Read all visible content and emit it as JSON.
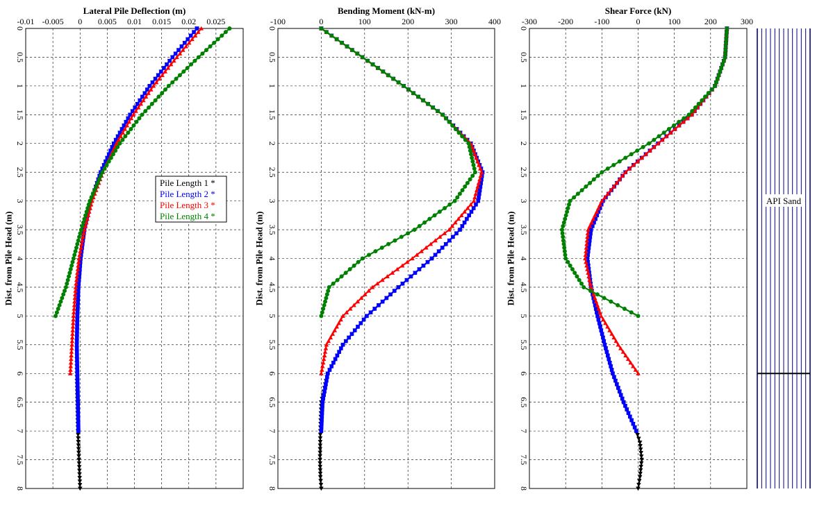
{
  "chart_data": [
    {
      "type": "line",
      "title": "Lateral Pile Deflection (m)",
      "xlabel": "Lateral Pile Deflection (m)",
      "ylabel": "Dist. from Pile Head (m)",
      "xlim": [
        -0.01,
        0.03
      ],
      "ylim": [
        0,
        8
      ],
      "xticks": [
        -0.01,
        -0.005,
        0,
        0.005,
        0.01,
        0.015,
        0.02,
        0.025
      ],
      "xtick_labels": [
        "-0.01",
        "-0.005",
        "0",
        "0.005",
        "0.01",
        "0.015",
        "0.02",
        "0.025"
      ],
      "yticks": [
        0,
        0.5,
        1,
        1.5,
        2,
        2.5,
        3,
        3.5,
        4,
        4.5,
        5,
        5.5,
        6,
        6.5,
        7,
        7.5,
        8
      ],
      "ytick_labels": [
        "0",
        "0.5",
        "1",
        "1.5",
        "2",
        "2.5",
        "3",
        "3.5",
        "4",
        "4.5",
        "5",
        "5.5",
        "6",
        "6.5",
        "7",
        "7.5",
        "8"
      ],
      "grid": true,
      "series": [
        {
          "name": "Pile Length 1",
          "color": "#000000",
          "marker": "triangle-down",
          "x": [
            0.0215,
            0.017,
            0.0128,
            0.0092,
            0.0062,
            0.0038,
            0.002,
            0.0008,
            0.0001,
            -0.0003,
            -0.0005,
            -0.0006,
            -0.0006,
            -0.0005,
            -0.0004,
            -0.0002,
            0
          ],
          "y": [
            0,
            0.5,
            1,
            1.5,
            2,
            2.5,
            3,
            3.5,
            4,
            4.5,
            5,
            5.5,
            6,
            6.5,
            7,
            7.5,
            8
          ]
        },
        {
          "name": "Pile Length 2",
          "color": "#0000ff",
          "marker": "square",
          "x": [
            0.0215,
            0.017,
            0.0128,
            0.0092,
            0.0062,
            0.0038,
            0.002,
            0.0008,
            0.0001,
            -0.0003,
            -0.0005,
            -0.0006,
            -0.0005,
            -0.0004,
            -0.0003
          ],
          "y": [
            0,
            0.5,
            1,
            1.5,
            2,
            2.5,
            3,
            3.5,
            4,
            4.5,
            5,
            5.5,
            6,
            6.5,
            7
          ]
        },
        {
          "name": "Pile Length 3",
          "color": "#ff0000",
          "marker": "triangle-up",
          "x": [
            0.0223,
            0.0178,
            0.0135,
            0.0098,
            0.0067,
            0.0042,
            0.0022,
            0.0008,
            -0.0002,
            -0.0008,
            -0.0012,
            -0.0015,
            -0.0018
          ],
          "y": [
            0,
            0.5,
            1,
            1.5,
            2,
            2.5,
            3,
            3.5,
            4,
            4.5,
            5,
            5.5,
            6
          ]
        },
        {
          "name": "Pile Length 4",
          "color": "#008000",
          "marker": "circle",
          "x": [
            0.0275,
            0.0218,
            0.0163,
            0.0114,
            0.0073,
            0.0041,
            0.0018,
            0.0002,
            -0.0012,
            -0.0026,
            -0.0045
          ],
          "y": [
            0,
            0.5,
            1,
            1.5,
            2,
            2.5,
            3,
            3.5,
            4,
            4.5,
            5
          ]
        }
      ],
      "legend": {
        "placement": "center-right",
        "suffix": "*"
      }
    },
    {
      "type": "line",
      "title": "Bending Moment (kN-m)",
      "xlabel": "Bending Moment (kN-m)",
      "ylabel": "Dist. from Pile Head (m)",
      "xlim": [
        -100,
        400
      ],
      "ylim": [
        0,
        8
      ],
      "xticks": [
        -100,
        0,
        100,
        200,
        300,
        400
      ],
      "xtick_labels": [
        "-100",
        "0",
        "100",
        "200",
        "300",
        "400"
      ],
      "yticks": [
        0,
        0.5,
        1,
        1.5,
        2,
        2.5,
        3,
        3.5,
        4,
        4.5,
        5,
        5.5,
        6,
        6.5,
        7,
        7.5,
        8
      ],
      "ytick_labels": [
        "0",
        "0.5",
        "1",
        "1.5",
        "2",
        "2.5",
        "3",
        "3.5",
        "4",
        "4.5",
        "5",
        "5.5",
        "6",
        "6.5",
        "7",
        "7.5",
        "8"
      ],
      "grid": true,
      "series": [
        {
          "name": "Pile Length 1",
          "color": "#000000",
          "marker": "triangle-down",
          "x": [
            0,
            95,
            190,
            280,
            345,
            372,
            362,
            320,
            255,
            178,
            105,
            50,
            15,
            0,
            -2,
            -3,
            -2,
            0
          ],
          "y": [
            0,
            0.5,
            1,
            1.5,
            2,
            2.5,
            3,
            3.5,
            4,
            4.5,
            5,
            5.5,
            6,
            6.5,
            7,
            7.5,
            7.8,
            8
          ]
        },
        {
          "name": "Pile Length 2",
          "color": "#0000ff",
          "marker": "square",
          "x": [
            0,
            95,
            190,
            280,
            345,
            372,
            362,
            320,
            255,
            178,
            105,
            50,
            15,
            3,
            0
          ],
          "y": [
            0,
            0.5,
            1,
            1.5,
            2,
            2.5,
            3,
            3.5,
            4,
            4.5,
            5,
            5.5,
            6,
            6.5,
            7
          ]
        },
        {
          "name": "Pile Length 3",
          "color": "#ff0000",
          "marker": "triangle-up",
          "x": [
            0,
            95,
            190,
            280,
            345,
            370,
            352,
            295,
            210,
            118,
            50,
            12,
            0
          ],
          "y": [
            0,
            0.5,
            1,
            1.5,
            2,
            2.5,
            3,
            3.5,
            4,
            4.5,
            5,
            5.5,
            6
          ]
        },
        {
          "name": "Pile Length 4",
          "color": "#008000",
          "marker": "circle",
          "x": [
            0,
            95,
            190,
            280,
            340,
            355,
            308,
            215,
            95,
            18,
            0
          ],
          "y": [
            0,
            0.5,
            1,
            1.5,
            2,
            2.5,
            3,
            3.5,
            4,
            4.5,
            5
          ]
        }
      ]
    },
    {
      "type": "line",
      "title": "Shear Force (kN)",
      "xlabel": "Shear Force (kN)",
      "ylabel": "Dist. from Pile Head (m)",
      "xlim": [
        -300,
        300
      ],
      "ylim": [
        0,
        8
      ],
      "xticks": [
        -300,
        -200,
        -100,
        0,
        100,
        200,
        300
      ],
      "xtick_labels": [
        "-300",
        "-200",
        "-100",
        "0",
        "100",
        "200",
        "300"
      ],
      "yticks": [
        0,
        0.5,
        1,
        1.5,
        2,
        2.5,
        3,
        3.5,
        4,
        4.5,
        5,
        5.5,
        6,
        6.5,
        7,
        7.5,
        8
      ],
      "ytick_labels": [
        "0",
        "0.5",
        "1",
        "1.5",
        "2",
        "2.5",
        "3",
        "3.5",
        "4",
        "4.5",
        "5",
        "5.5",
        "6",
        "6.5",
        "7",
        "7.5",
        "8"
      ],
      "grid": true,
      "series": [
        {
          "name": "Pile Length 1",
          "color": "#000000",
          "marker": "triangle-down",
          "x": [
            245,
            240,
            212,
            148,
            55,
            -35,
            -97,
            -130,
            -140,
            -130,
            -112,
            -92,
            -70,
            -40,
            -5,
            5,
            10,
            5,
            0
          ],
          "y": [
            0,
            0.5,
            1,
            1.5,
            2,
            2.5,
            3,
            3.5,
            4,
            4.5,
            5,
            5.5,
            6,
            6.5,
            7,
            7.2,
            7.5,
            7.8,
            8
          ]
        },
        {
          "name": "Pile Length 2",
          "color": "#0000ff",
          "marker": "square",
          "x": [
            245,
            240,
            212,
            148,
            55,
            -35,
            -97,
            -130,
            -140,
            -130,
            -112,
            -92,
            -70,
            -40,
            -5
          ],
          "y": [
            0,
            0.5,
            1,
            1.5,
            2,
            2.5,
            3,
            3.5,
            4,
            4.5,
            5,
            5.5,
            6,
            6.5,
            7
          ]
        },
        {
          "name": "Pile Length 3",
          "color": "#ff0000",
          "marker": "triangle-up",
          "x": [
            245,
            240,
            212,
            148,
            55,
            -35,
            -100,
            -138,
            -146,
            -130,
            -102,
            -55,
            0
          ],
          "y": [
            0,
            0.5,
            1,
            1.5,
            2,
            2.5,
            3,
            3.5,
            4,
            4.5,
            5,
            5.5,
            6
          ]
        },
        {
          "name": "Pile Length 4",
          "color": "#008000",
          "marker": "circle",
          "x": [
            245,
            240,
            212,
            140,
            30,
            -100,
            -188,
            -210,
            -200,
            -150,
            0
          ],
          "y": [
            0,
            0.5,
            1,
            1.5,
            2,
            2.5,
            3,
            3.5,
            4,
            4.5,
            5
          ]
        }
      ]
    }
  ],
  "legend": {
    "items": [
      "Pile Length 1",
      "Pile Length 2",
      "Pile Length 3",
      "Pile Length 4"
    ],
    "colors": [
      "#000000",
      "#0000ff",
      "#ff0000",
      "#008000"
    ],
    "asterisk": "*"
  },
  "soil_profile": {
    "layer_label": "API Sand",
    "layer_boundary_depth": 6,
    "line_color": "#000080"
  }
}
